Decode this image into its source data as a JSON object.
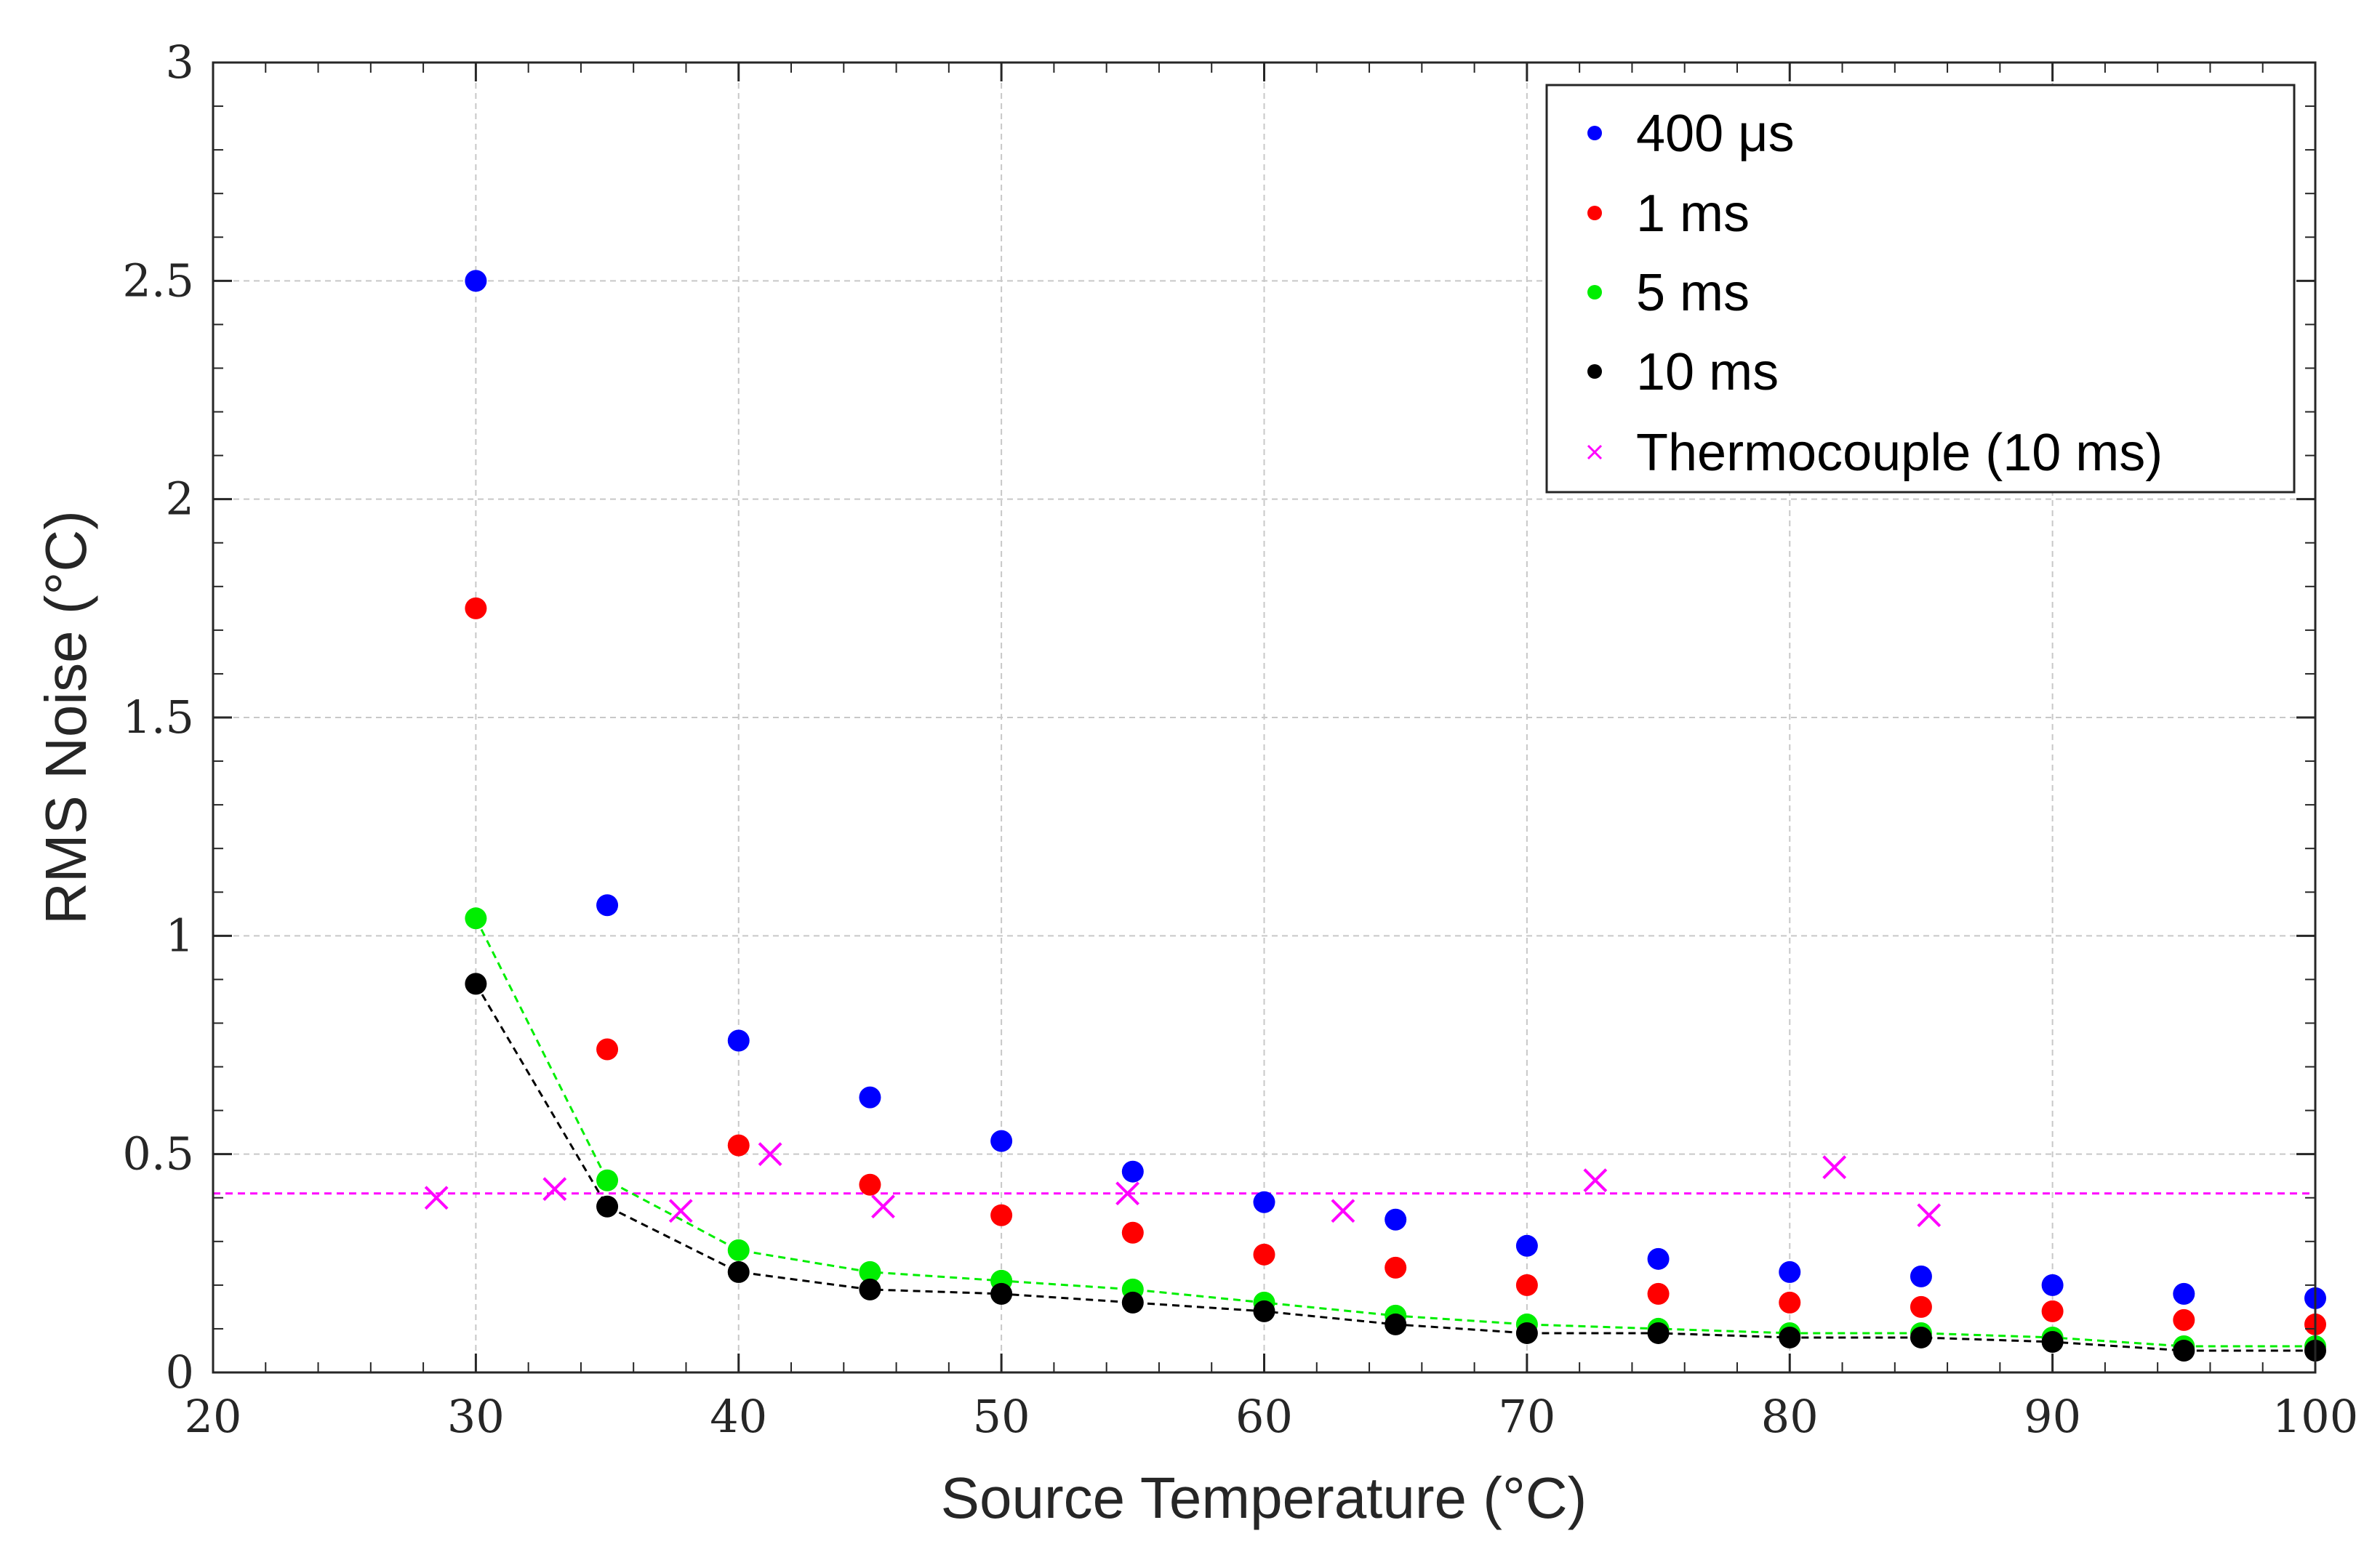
{
  "chart_data": {
    "type": "scatter",
    "title": "",
    "xlabel": "Source Temperature (°C)",
    "ylabel": "RMS Noise (°C)",
    "xlim": [
      20,
      100
    ],
    "ylim": [
      0,
      3
    ],
    "xticks": [
      20,
      30,
      40,
      50,
      60,
      70,
      80,
      90,
      100
    ],
    "yticks": [
      0,
      0.5,
      1,
      1.5,
      2,
      2.5,
      3
    ],
    "xtick_labels": [
      "20",
      "30",
      "40",
      "50",
      "60",
      "70",
      "80",
      "90",
      "100"
    ],
    "ytick_labels": [
      "0",
      "0.5",
      "1",
      "1.5",
      "2",
      "2.5",
      "3"
    ],
    "grid": true,
    "legend_position": "top-right",
    "series": [
      {
        "name": "400 μs",
        "color": "#0000ff",
        "marker": "dot",
        "x": [
          30,
          35,
          40,
          45,
          50,
          55,
          60,
          65,
          70,
          75,
          80,
          85,
          90,
          95,
          100
        ],
        "y": [
          2.5,
          1.07,
          0.76,
          0.63,
          0.53,
          0.46,
          0.39,
          0.35,
          0.29,
          0.26,
          0.23,
          0.22,
          0.2,
          0.18,
          0.17
        ]
      },
      {
        "name": "1 ms",
        "color": "#ff0000",
        "marker": "dot",
        "x": [
          30,
          35,
          40,
          45,
          50,
          55,
          60,
          65,
          70,
          75,
          80,
          85,
          90,
          95,
          100
        ],
        "y": [
          1.75,
          0.74,
          0.52,
          0.43,
          0.36,
          0.32,
          0.27,
          0.24,
          0.2,
          0.18,
          0.16,
          0.15,
          0.14,
          0.12,
          0.11
        ]
      },
      {
        "name": "5 ms",
        "color": "#00ee00",
        "marker": "dot",
        "x": [
          30,
          35,
          40,
          45,
          50,
          55,
          60,
          65,
          70,
          75,
          80,
          85,
          90,
          95,
          100
        ],
        "y": [
          1.04,
          0.44,
          0.28,
          0.23,
          0.21,
          0.19,
          0.16,
          0.13,
          0.11,
          0.1,
          0.09,
          0.09,
          0.08,
          0.06,
          0.06
        ],
        "trend_line": true
      },
      {
        "name": "10 ms",
        "color": "#000000",
        "marker": "dot",
        "x": [
          30,
          35,
          40,
          45,
          50,
          55,
          60,
          65,
          70,
          75,
          80,
          85,
          90,
          95,
          100
        ],
        "y": [
          0.89,
          0.38,
          0.23,
          0.19,
          0.18,
          0.16,
          0.14,
          0.11,
          0.09,
          0.09,
          0.08,
          0.08,
          0.07,
          0.05,
          0.05
        ],
        "trend_line": true
      },
      {
        "name": "Thermocouple (10 ms)",
        "color": "#ff00ff",
        "marker": "x",
        "x": [
          28.5,
          33,
          37.8,
          41.2,
          45.5,
          54.8,
          63,
          72.6,
          81.7,
          85.3
        ],
        "y": [
          0.4,
          0.42,
          0.37,
          0.5,
          0.38,
          0.41,
          0.37,
          0.44,
          0.47,
          0.36
        ]
      }
    ],
    "reference_lines": [
      {
        "name": "Thermocouple mean",
        "orientation": "horizontal",
        "y": 0.41,
        "color": "#ff00ff",
        "style": "dashed"
      }
    ]
  }
}
